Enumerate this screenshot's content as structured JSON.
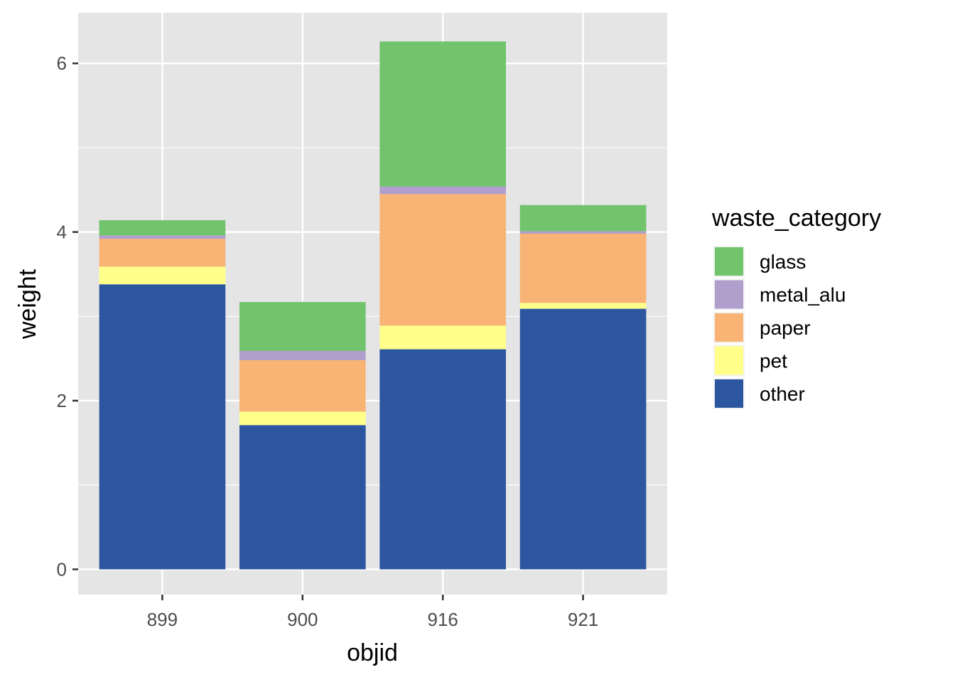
{
  "chart_data": {
    "type": "bar",
    "stacked": true,
    "categories": [
      "899",
      "900",
      "916",
      "921"
    ],
    "series": [
      {
        "name": "other",
        "color": "#2c57a0",
        "values": [
          3.38,
          1.71,
          2.61,
          3.09
        ]
      },
      {
        "name": "pet",
        "color": "#ffff8a",
        "values": [
          0.21,
          0.16,
          0.28,
          0.07
        ]
      },
      {
        "name": "paper",
        "color": "#f9b374",
        "values": [
          0.33,
          0.61,
          1.56,
          0.82
        ]
      },
      {
        "name": "metal_alu",
        "color": "#b09fcc",
        "values": [
          0.04,
          0.11,
          0.09,
          0.03
        ]
      },
      {
        "name": "glass",
        "color": "#71c36c",
        "values": [
          0.18,
          0.58,
          1.72,
          0.31
        ]
      }
    ],
    "legend_order": [
      "glass",
      "metal_alu",
      "paper",
      "pet",
      "other"
    ],
    "legend_title": "waste_category",
    "legend_position": "right",
    "xlabel": "objid",
    "ylabel": "weight",
    "yticks": [
      0,
      2,
      4,
      6
    ],
    "ylim": [
      -0.3,
      6.6
    ],
    "grid": true,
    "panel_background": "#e5e5e5"
  }
}
